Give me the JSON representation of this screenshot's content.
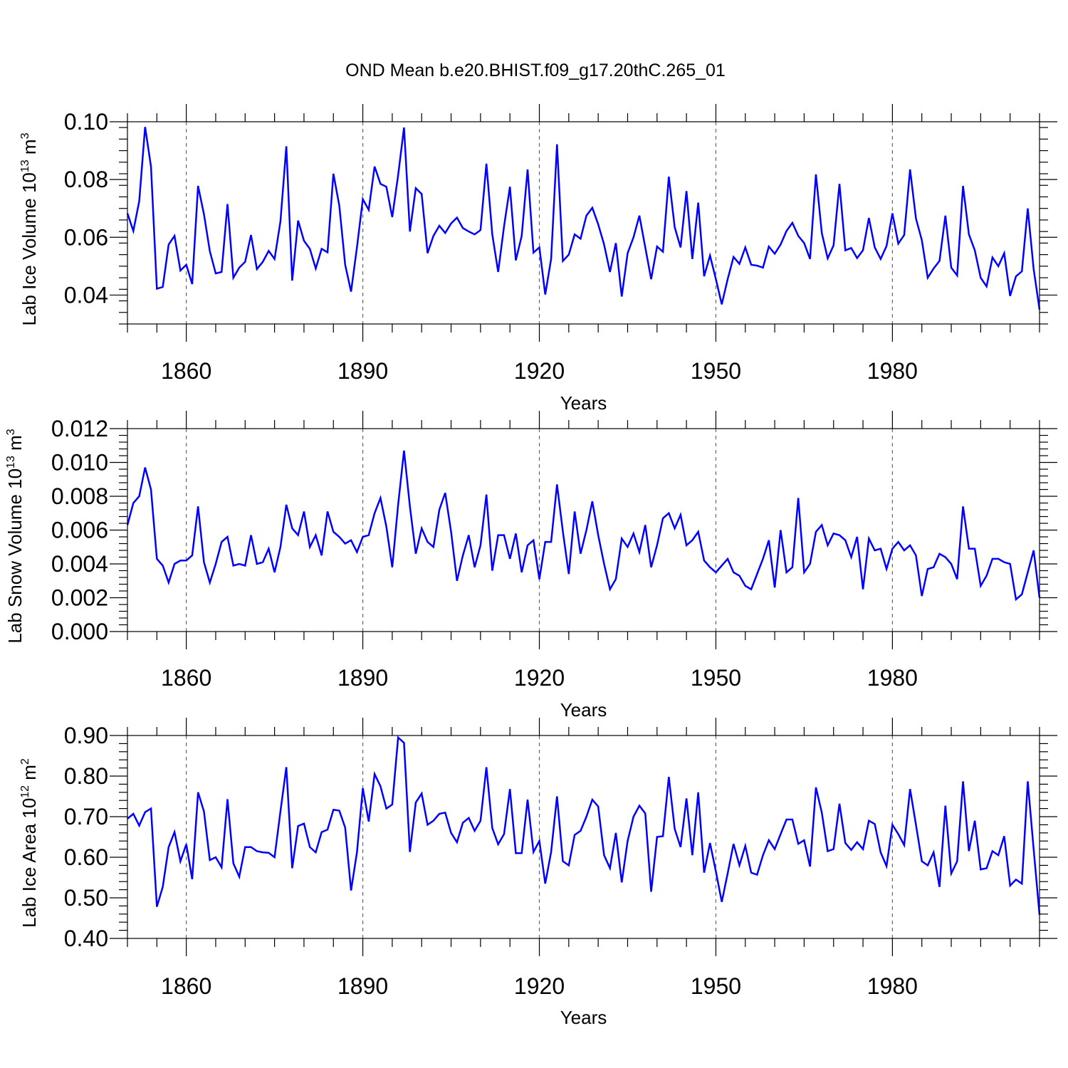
{
  "chart_data": [
    {
      "type": "line",
      "title": "OND Mean b.e20.BHIST.f09_g17.20thC.265_01",
      "xlabel": "Years",
      "ylabel": "Lab Ice Volume 10",
      "ylabel_exp": "13",
      "ylabel_unit": " m",
      "ylabel_unit_exp": "3",
      "xlim": [
        1850,
        2005
      ],
      "ylim": [
        0.03,
        0.1
      ],
      "xticks": [
        1860,
        1890,
        1920,
        1950,
        1980
      ],
      "xtick_labels": [
        "1860",
        "1890",
        "1920",
        "1950",
        "1980"
      ],
      "yticks": [
        0.04,
        0.06,
        0.08,
        0.1
      ],
      "ytick_labels": [
        "0.04",
        "0.06",
        "0.08",
        "0.10"
      ],
      "grid": "dashed vertical lines at major x ticks",
      "series": [
        {
          "name": "Lab Ice Volume",
          "color": "#0000ff",
          "x_start": 1850,
          "x_step": 1,
          "values": [
            0.0683,
            0.0622,
            0.0725,
            0.0982,
            0.0845,
            0.0422,
            0.0428,
            0.0575,
            0.0605,
            0.0485,
            0.0505,
            0.0438,
            0.0778,
            0.068,
            0.0552,
            0.0475,
            0.048,
            0.0715,
            0.046,
            0.0495,
            0.0515,
            0.0608,
            0.049,
            0.0515,
            0.0553,
            0.0525,
            0.0655,
            0.0915,
            0.045,
            0.0658,
            0.0588,
            0.056,
            0.0492,
            0.056,
            0.0548,
            0.082,
            0.071,
            0.0505,
            0.0412,
            0.0565,
            0.0732,
            0.0695,
            0.0845,
            0.0785,
            0.0775,
            0.067,
            0.0815,
            0.098,
            0.062,
            0.077,
            0.075,
            0.0545,
            0.0605,
            0.064,
            0.0615,
            0.0648,
            0.0668,
            0.0632,
            0.062,
            0.061,
            0.0625,
            0.0855,
            0.061,
            0.048,
            0.0638,
            0.0775,
            0.052,
            0.0605,
            0.0835,
            0.0547,
            0.0565,
            0.0402,
            0.0525,
            0.0922,
            0.0518,
            0.054,
            0.061,
            0.0595,
            0.0675,
            0.0702,
            0.0645,
            0.0575,
            0.048,
            0.058,
            0.0395,
            0.0545,
            0.06,
            0.0675,
            0.0565,
            0.0455,
            0.0568,
            0.055,
            0.081,
            0.0635,
            0.0565,
            0.076,
            0.0525,
            0.072,
            0.0465,
            0.0537,
            0.0455,
            0.0368,
            0.0455,
            0.0532,
            0.0508,
            0.0565,
            0.0505,
            0.0502,
            0.0495,
            0.0568,
            0.0543,
            0.0575,
            0.0622,
            0.065,
            0.0605,
            0.058,
            0.0525,
            0.0818,
            0.0615,
            0.0527,
            0.0572,
            0.0785,
            0.0555,
            0.0563,
            0.0528,
            0.0555,
            0.0667,
            0.0565,
            0.0525,
            0.057,
            0.0683,
            0.0578,
            0.0608,
            0.0835,
            0.0665,
            0.059,
            0.046,
            0.0492,
            0.0518,
            0.0675,
            0.0495,
            0.0468,
            0.0778,
            0.061,
            0.0555,
            0.046,
            0.043,
            0.053,
            0.05,
            0.0545,
            0.0397,
            0.0465,
            0.0482,
            0.07,
            0.049,
            0.035
          ]
        }
      ]
    },
    {
      "type": "line",
      "xlabel": "Years",
      "ylabel": "Lab Snow Volume 10",
      "ylabel_exp": "13",
      "ylabel_unit": " m",
      "ylabel_unit_exp": "3",
      "xlim": [
        1850,
        2005
      ],
      "ylim": [
        0.0,
        0.012
      ],
      "xticks": [
        1860,
        1890,
        1920,
        1950,
        1980
      ],
      "xtick_labels": [
        "1860",
        "1890",
        "1920",
        "1950",
        "1980"
      ],
      "yticks": [
        0.0,
        0.002,
        0.004,
        0.006,
        0.008,
        0.01,
        0.012
      ],
      "ytick_labels": [
        "0.000",
        "0.002",
        "0.004",
        "0.006",
        "0.008",
        "0.010",
        "0.012"
      ],
      "grid": "dashed vertical lines at major x ticks",
      "series": [
        {
          "name": "Lab Snow Volume",
          "color": "#0000ff",
          "x_start": 1850,
          "x_step": 1,
          "values": [
            0.0063,
            0.0076,
            0.008,
            0.0097,
            0.0084,
            0.0043,
            0.0039,
            0.0029,
            0.004,
            0.0042,
            0.0042,
            0.0045,
            0.0074,
            0.0041,
            0.0029,
            0.004,
            0.0053,
            0.0056,
            0.0039,
            0.004,
            0.0039,
            0.0057,
            0.004,
            0.0041,
            0.0049,
            0.0035,
            0.005,
            0.0075,
            0.0061,
            0.0057,
            0.0071,
            0.005,
            0.0057,
            0.0045,
            0.0071,
            0.0059,
            0.0056,
            0.0052,
            0.0054,
            0.0047,
            0.0056,
            0.0057,
            0.007,
            0.0079,
            0.0062,
            0.0038,
            0.0075,
            0.0107,
            0.0074,
            0.0046,
            0.0061,
            0.0053,
            0.005,
            0.0072,
            0.0082,
            0.0059,
            0.003,
            0.0045,
            0.0057,
            0.0038,
            0.0051,
            0.0081,
            0.0036,
            0.0057,
            0.0057,
            0.0043,
            0.0058,
            0.0035,
            0.0051,
            0.0054,
            0.0031,
            0.0053,
            0.0053,
            0.0087,
            0.0059,
            0.0034,
            0.0071,
            0.0046,
            0.006,
            0.0077,
            0.0057,
            0.004,
            0.0025,
            0.0031,
            0.0055,
            0.005,
            0.0058,
            0.0047,
            0.0063,
            0.0038,
            0.0051,
            0.0067,
            0.007,
            0.0061,
            0.0069,
            0.0051,
            0.0054,
            0.0059,
            0.0042,
            0.0038,
            0.0035,
            0.0039,
            0.0043,
            0.0035,
            0.0033,
            0.0027,
            0.0025,
            0.0034,
            0.0043,
            0.0054,
            0.0026,
            0.006,
            0.0035,
            0.0038,
            0.0079,
            0.0035,
            0.004,
            0.0059,
            0.0063,
            0.0051,
            0.0058,
            0.0057,
            0.0054,
            0.0044,
            0.0056,
            0.0025,
            0.0055,
            0.0048,
            0.0049,
            0.0037,
            0.0049,
            0.0053,
            0.0048,
            0.0051,
            0.0045,
            0.0021,
            0.0037,
            0.0038,
            0.0046,
            0.0044,
            0.004,
            0.0031,
            0.0074,
            0.0049,
            0.0049,
            0.0027,
            0.0033,
            0.0043,
            0.0043,
            0.0041,
            0.004,
            0.0019,
            0.0022,
            0.0035,
            0.0048,
            0.002
          ]
        }
      ]
    },
    {
      "type": "line",
      "xlabel": "Years",
      "ylabel": "Lab Ice Area 10",
      "ylabel_exp": "12",
      "ylabel_unit": " m",
      "ylabel_unit_exp": "2",
      "xlim": [
        1850,
        2005
      ],
      "ylim": [
        0.4,
        0.9
      ],
      "xticks": [
        1860,
        1890,
        1920,
        1950,
        1980
      ],
      "xtick_labels": [
        "1860",
        "1890",
        "1920",
        "1950",
        "1980"
      ],
      "yticks": [
        0.4,
        0.5,
        0.6,
        0.7,
        0.8,
        0.9
      ],
      "ytick_labels": [
        "0.40",
        "0.50",
        "0.60",
        "0.70",
        "0.80",
        "0.90"
      ],
      "grid": "dashed vertical lines at major x ticks",
      "series": [
        {
          "name": "Lab Ice Area",
          "color": "#0000ff",
          "x_start": 1850,
          "x_step": 1,
          "values": [
            0.695,
            0.707,
            0.678,
            0.711,
            0.72,
            0.478,
            0.527,
            0.625,
            0.662,
            0.59,
            0.632,
            0.546,
            0.76,
            0.713,
            0.593,
            0.6,
            0.575,
            0.743,
            0.585,
            0.552,
            0.625,
            0.625,
            0.615,
            0.612,
            0.611,
            0.6,
            0.713,
            0.822,
            0.573,
            0.677,
            0.683,
            0.625,
            0.612,
            0.662,
            0.668,
            0.717,
            0.715,
            0.673,
            0.518,
            0.612,
            0.77,
            0.688,
            0.805,
            0.775,
            0.72,
            0.73,
            0.895,
            0.882,
            0.613,
            0.735,
            0.757,
            0.68,
            0.69,
            0.707,
            0.71,
            0.66,
            0.637,
            0.685,
            0.697,
            0.665,
            0.69,
            0.822,
            0.672,
            0.632,
            0.657,
            0.768,
            0.61,
            0.61,
            0.742,
            0.613,
            0.64,
            0.535,
            0.613,
            0.75,
            0.59,
            0.58,
            0.655,
            0.665,
            0.7,
            0.742,
            0.725,
            0.605,
            0.573,
            0.66,
            0.538,
            0.64,
            0.7,
            0.727,
            0.708,
            0.515,
            0.65,
            0.652,
            0.798,
            0.67,
            0.625,
            0.745,
            0.605,
            0.76,
            0.562,
            0.635,
            0.565,
            0.49,
            0.56,
            0.633,
            0.58,
            0.628,
            0.562,
            0.557,
            0.605,
            0.642,
            0.62,
            0.657,
            0.693,
            0.693,
            0.633,
            0.642,
            0.577,
            0.772,
            0.71,
            0.615,
            0.62,
            0.732,
            0.635,
            0.618,
            0.637,
            0.62,
            0.69,
            0.682,
            0.612,
            0.578,
            0.68,
            0.657,
            0.63,
            0.768,
            0.68,
            0.59,
            0.58,
            0.612,
            0.527,
            0.727,
            0.56,
            0.59,
            0.787,
            0.615,
            0.69,
            0.57,
            0.573,
            0.615,
            0.605,
            0.652,
            0.53,
            0.545,
            0.535,
            0.787,
            0.62,
            0.458
          ]
        }
      ]
    }
  ]
}
